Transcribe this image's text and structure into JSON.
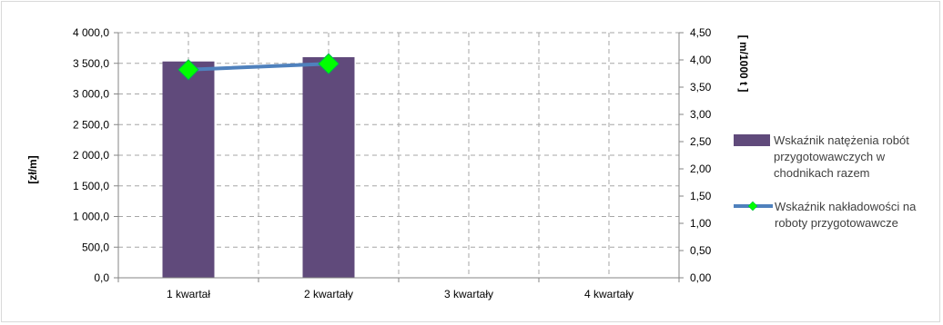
{
  "chart_data": {
    "type": "bar",
    "categories": [
      "1 kwartał",
      "2 kwartały",
      "3 kwartały",
      "4 kwartały"
    ],
    "series": [
      {
        "name": "Wskaźnik natężenia robót przygotowawczych w chodnikach razem",
        "type": "bar",
        "axis": "left",
        "color": "#604a7b",
        "values": [
          3530,
          3600,
          null,
          null
        ]
      },
      {
        "name": "Wskaźnik nakładowości na roboty przygotowawcze",
        "type": "line",
        "axis": "right",
        "color": "#4f81bd",
        "marker_color": "#00ff00",
        "values": [
          3.82,
          3.93,
          null,
          null
        ]
      }
    ],
    "ylabel": "[zł/m]",
    "y2label": "[ m/1000 t ]",
    "ylim": [
      0,
      4000
    ],
    "y2lim": [
      0,
      4.5
    ],
    "yticks": [
      "0,0",
      "500,0",
      "1 000,0",
      "1 500,0",
      "2 000,0",
      "2 500,0",
      "3 000,0",
      "3 500,0",
      "4 000,0"
    ],
    "y2ticks": [
      "0,00",
      "0,50",
      "1,00",
      "1,50",
      "2,00",
      "2,50",
      "3,00",
      "3,50",
      "4,00",
      "4,50"
    ],
    "legend_lines": [
      [
        "Wskaźnik natężenia robót",
        "przygotowawczych w",
        "chodnikach razem"
      ],
      [
        "Wskaźnik nakładowości na",
        "roboty przygotowawcze"
      ]
    ],
    "grid": true,
    "legend_position": "right"
  }
}
